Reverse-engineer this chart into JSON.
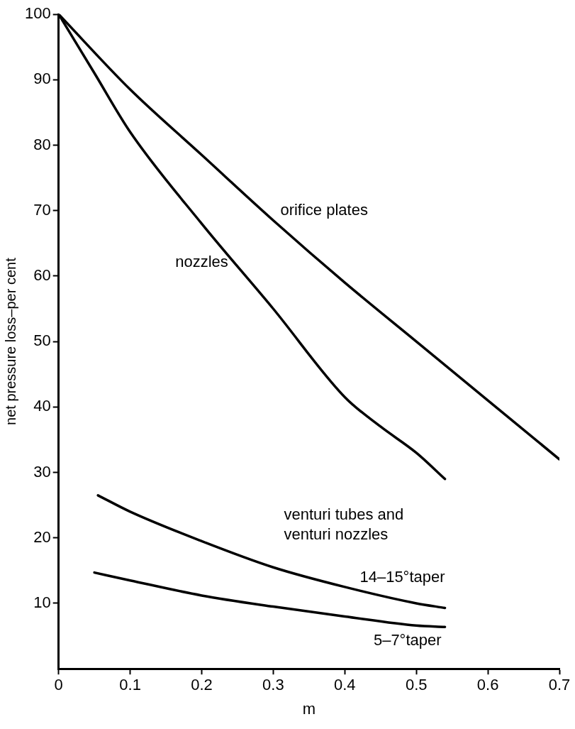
{
  "chart_data": {
    "type": "line",
    "xlabel": "m",
    "ylabel": "net pressure loss–per cent",
    "xlim": [
      0,
      0.7
    ],
    "xticks": [
      0,
      0.1,
      0.2,
      0.3,
      0.4,
      0.5,
      0.6,
      0.7
    ],
    "ylim": [
      0,
      100
    ],
    "yticks": [
      10,
      20,
      30,
      40,
      50,
      60,
      70,
      80,
      90,
      100
    ],
    "grid": false,
    "legend": false,
    "marker": "none",
    "line_style": "solid",
    "annotations": [
      "venturi tubes and venturi nozzles"
    ],
    "series": [
      {
        "name": "orifice plates",
        "color": "#000000",
        "x": [
          0,
          0.1,
          0.2,
          0.3,
          0.4,
          0.5,
          0.6,
          0.7
        ],
        "values": [
          100,
          88.5,
          78.5,
          68.5,
          59,
          50,
          41,
          32
        ]
      },
      {
        "name": "nozzles",
        "color": "#000000",
        "x": [
          0,
          0.05,
          0.1,
          0.2,
          0.3,
          0.4,
          0.45,
          0.5,
          0.54
        ],
        "values": [
          100,
          91,
          82,
          68,
          55,
          41.5,
          37,
          33,
          29
        ]
      },
      {
        "name": "14–15°taper",
        "color": "#000000",
        "x": [
          0.055,
          0.1,
          0.2,
          0.3,
          0.4,
          0.5,
          0.54
        ],
        "values": [
          26.5,
          24,
          19.5,
          15.5,
          12.5,
          10,
          9.3
        ]
      },
      {
        "name": "5–7°taper",
        "color": "#000000",
        "x": [
          0.05,
          0.1,
          0.2,
          0.3,
          0.4,
          0.5,
          0.54
        ],
        "values": [
          14.7,
          13.5,
          11.2,
          9.5,
          8,
          6.6,
          6.4
        ]
      }
    ]
  }
}
